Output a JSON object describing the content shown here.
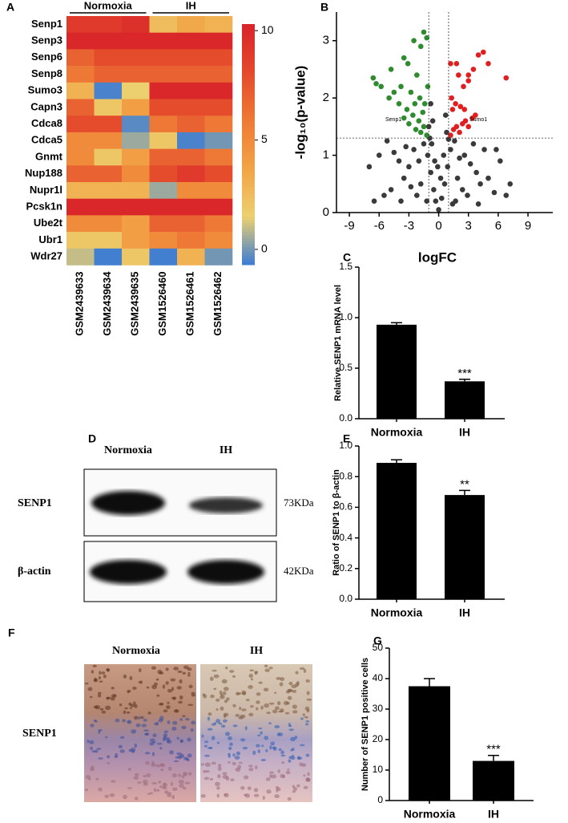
{
  "chart_data": [
    {
      "panel": "A",
      "type": "heatmap",
      "groups": [
        "Normoxia",
        "IH"
      ],
      "rows": [
        "Senp1",
        "Senp3",
        "Senp6",
        "Senp8",
        "Sumo3",
        "Capn3",
        "Cdca8",
        "Cdca5",
        "Gnmt",
        "Nup188",
        "Nupr1l",
        "Pcsk1n",
        "Ube2t",
        "Ubr1",
        "Wdr27"
      ],
      "columns": [
        "GSM2439633",
        "GSM2439634",
        "GSM2439635",
        "GSM1526460",
        "GSM1526461",
        "GSM1526462"
      ],
      "values": [
        [
          9,
          9,
          9.5,
          2.5,
          3.5,
          3
        ],
        [
          10,
          10,
          10,
          10,
          10,
          10
        ],
        [
          7,
          8,
          8,
          8,
          8,
          8
        ],
        [
          6,
          7,
          7,
          7,
          7,
          7
        ],
        [
          3,
          -0.5,
          1.5,
          10,
          10,
          10
        ],
        [
          7,
          2,
          4,
          8,
          8,
          8
        ],
        [
          8,
          8,
          -0.3,
          6,
          7,
          6
        ],
        [
          5,
          5,
          0.5,
          2,
          -0.5,
          0
        ],
        [
          5,
          2,
          4,
          7,
          7,
          6
        ],
        [
          7,
          7,
          5,
          8,
          9,
          8
        ],
        [
          3,
          3,
          3,
          0.5,
          5,
          5
        ],
        [
          10,
          10,
          10,
          10,
          10,
          10
        ],
        [
          5,
          5,
          4,
          7,
          7,
          6
        ],
        [
          2,
          2,
          4,
          5,
          6,
          5
        ],
        [
          1,
          -0.6,
          2,
          -0.6,
          3,
          0
        ]
      ],
      "colorbar_lim": [
        -0.7,
        10.3
      ],
      "colorbar_ticks": [
        0,
        5,
        10
      ],
      "colormap": [
        "#3a7bd5",
        "#ecd070",
        "#f2a446",
        "#ee7a35",
        "#e44a2c",
        "#d8232a"
      ]
    },
    {
      "panel": "B",
      "type": "scatter",
      "x_label": "logFC",
      "y_label": "-log₁₀(p-value)",
      "xlim": [
        -10.3,
        11.5
      ],
      "ylim": [
        0,
        3.5
      ],
      "xticks": [
        -9,
        -6,
        -3,
        0,
        3,
        6,
        9
      ],
      "yticks": [
        0,
        1,
        2,
        3
      ],
      "thresholds": {
        "x": [
          -1,
          1
        ],
        "y": 1.3
      },
      "annotations": [
        "Senp1",
        "Sumo1"
      ],
      "series": [
        {
          "color": "#3a3a3a",
          "x": [
            0,
            -0.3,
            0.3,
            -0.5,
            0.6,
            -0.8,
            0.9,
            -1.1,
            1.2,
            -1.5,
            1.6,
            -2,
            2.1,
            -2.5,
            2.6,
            -3,
            3.2,
            -3.5,
            3.8,
            -4,
            4.2,
            -4.8,
            5,
            -5.5,
            5.6,
            -6.5,
            6.8,
            -2.2,
            2.4,
            -1.2,
            1.4,
            -0.9,
            1.0,
            -3.3,
            3.5,
            -4.5,
            4.6,
            -1.8,
            1.9,
            -2.8,
            2.9,
            -0.4,
            0.5,
            -0.7,
            0.8,
            -1.0,
            -0.6,
            0.7,
            -0.8,
            -5.2,
            5.8,
            -7,
            6.2,
            -3.8,
            4.0,
            0.2,
            -0.1,
            7.2,
            -6,
            1.7
          ],
          "y": [
            0.05,
            0.2,
            0.25,
            0.4,
            0.5,
            0.7,
            0.8,
            1.0,
            1.1,
            1.2,
            1.25,
            0.9,
            0.95,
            1.1,
            1.0,
            0.8,
            0.85,
            0.6,
            0.7,
            0.9,
            0.5,
            0.4,
            0.6,
            0.3,
            0.35,
            0.2,
            0.3,
            0.3,
            0.4,
            0.2,
            0.15,
            1.3,
            1.28,
            1.15,
            1.2,
            1.05,
            1.1,
            0.5,
            0.6,
            0.45,
            0.3,
            0.9,
            1.0,
            1.2,
            1.4,
            1.5,
            1.6,
            1.7,
            1.9,
            1.25,
            1.1,
            0.8,
            0.9,
            0.2,
            0.15,
            0.6,
            0.8,
            0.5,
            1.0,
            0.2
          ]
        },
        {
          "color": "#2e8b2e",
          "x": [
            -1.2,
            -1.5,
            -1.8,
            -2.0,
            -2.3,
            -2.6,
            -3.0,
            -3.2,
            -3.5,
            -1.4,
            -1.9,
            -2.4,
            -1.6,
            -4.0,
            -4.5,
            -5.0,
            -5.8,
            -6.3,
            -6.6,
            -4.8,
            -3.5,
            -2.5,
            -1.8,
            -1.2,
            -1.5,
            -2.2,
            -3.8,
            -1.1,
            -2.8,
            -3.1
          ],
          "y": [
            1.35,
            1.5,
            1.4,
            1.6,
            1.45,
            1.7,
            1.55,
            1.8,
            1.65,
            1.9,
            2.0,
            1.9,
            1.75,
            1.9,
            2.1,
            2.0,
            2.2,
            2.25,
            2.35,
            2.5,
            2.7,
            3.0,
            2.9,
            3.05,
            3.15,
            2.4,
            2.2,
            2.2,
            2.1,
            2.6
          ]
        },
        {
          "color": "#e02020",
          "x": [
            1.2,
            1.5,
            1.8,
            2.1,
            2.4,
            2.7,
            3.0,
            3.4,
            3.7,
            1.4,
            1.7,
            2.2,
            2.6,
            1.3,
            2.0,
            2.5,
            3.0,
            3.5,
            4.0,
            4.5,
            5.0,
            1.2,
            1.8,
            6.8,
            3.0
          ],
          "y": [
            1.35,
            1.45,
            1.5,
            1.4,
            1.55,
            1.6,
            1.5,
            1.65,
            1.7,
            1.8,
            1.9,
            1.85,
            1.8,
            2.0,
            2.4,
            2.2,
            2.4,
            2.5,
            2.75,
            2.8,
            2.6,
            2.6,
            2.6,
            2.35,
            2.3
          ]
        }
      ]
    },
    {
      "panel": "C",
      "type": "bar",
      "y_label": "Relative SENP1 mRNA level",
      "categories": [
        "Normoxia",
        "IH"
      ],
      "values": [
        0.93,
        0.37
      ],
      "errors": [
        0.02,
        0.02
      ],
      "significance": [
        null,
        "***"
      ],
      "color": "#000000",
      "ylim": [
        0,
        1.5
      ],
      "yticks": [
        {
          "value": 0,
          "label": "0.0"
        },
        0.5,
        {
          "value": 1,
          "label": "1.0"
        },
        1.5
      ]
    },
    {
      "panel": "E",
      "type": "bar",
      "y_label": "Ratio of SENP1 to β-actin",
      "categories": [
        "Normoxia",
        "IH"
      ],
      "values": [
        0.89,
        0.68
      ],
      "errors": [
        0.02,
        0.03
      ],
      "significance": [
        null,
        "**"
      ],
      "color": "#000000",
      "ylim": [
        0,
        1
      ],
      "yticks": [
        {
          "value": 0,
          "label": "0.0"
        },
        0.2,
        0.4,
        0.6,
        0.8,
        {
          "value": 1,
          "label": "1.0"
        }
      ]
    },
    {
      "panel": "G",
      "type": "bar",
      "y_label": "Number of SENP1 positive cells",
      "categories": [
        "Normoxia",
        "IH"
      ],
      "values": [
        37.5,
        13
      ],
      "errors": [
        2.5,
        1.8
      ],
      "significance": [
        null,
        "***"
      ],
      "color": "#000000",
      "ylim": [
        0,
        50
      ],
      "yticks": [
        0,
        10,
        20,
        30,
        40,
        50
      ]
    }
  ],
  "blot": {
    "panel": "D",
    "groups": [
      "Normoxia",
      "IH"
    ],
    "rows": [
      "SENP1",
      "β-actin"
    ],
    "sizes": [
      "73KDa",
      "42KDa"
    ]
  },
  "histology": {
    "panel": "F",
    "groups": [
      "Normoxia",
      "IH"
    ],
    "stain": "SENP1"
  }
}
